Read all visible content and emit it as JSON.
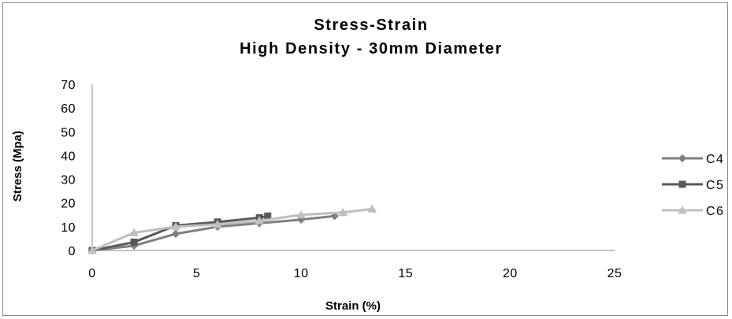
{
  "chart_data": {
    "type": "line",
    "title": "Stress-Strain",
    "subtitle": "High Density - 30mm Diameter",
    "xlabel": "Strain (%)",
    "ylabel": "Stress (Mpa)",
    "xlim": [
      0,
      25
    ],
    "ylim": [
      0,
      70
    ],
    "xticks": [
      0,
      5,
      10,
      15,
      20,
      25
    ],
    "yticks": [
      0,
      10,
      20,
      30,
      40,
      50,
      60,
      70
    ],
    "grid": false,
    "legend_position": "right",
    "series": [
      {
        "name": "C4",
        "color": "#7f7f7f",
        "marker": "diamond",
        "x": [
          0,
          2,
          4,
          6,
          8,
          10,
          11.6
        ],
        "y": [
          0,
          2,
          7,
          10,
          11.5,
          13,
          14.5
        ]
      },
      {
        "name": "C5",
        "color": "#595959",
        "marker": "square",
        "x": [
          0,
          2,
          4,
          6,
          8,
          8.4
        ],
        "y": [
          0,
          3.5,
          10.5,
          12,
          13.8,
          14.5
        ]
      },
      {
        "name": "C6",
        "color": "#bfbfbf",
        "marker": "triangle",
        "x": [
          0,
          2,
          4,
          6,
          8,
          10,
          12,
          13.4
        ],
        "y": [
          0,
          7.5,
          10,
          11,
          12.5,
          15,
          16,
          17.5
        ]
      }
    ]
  }
}
